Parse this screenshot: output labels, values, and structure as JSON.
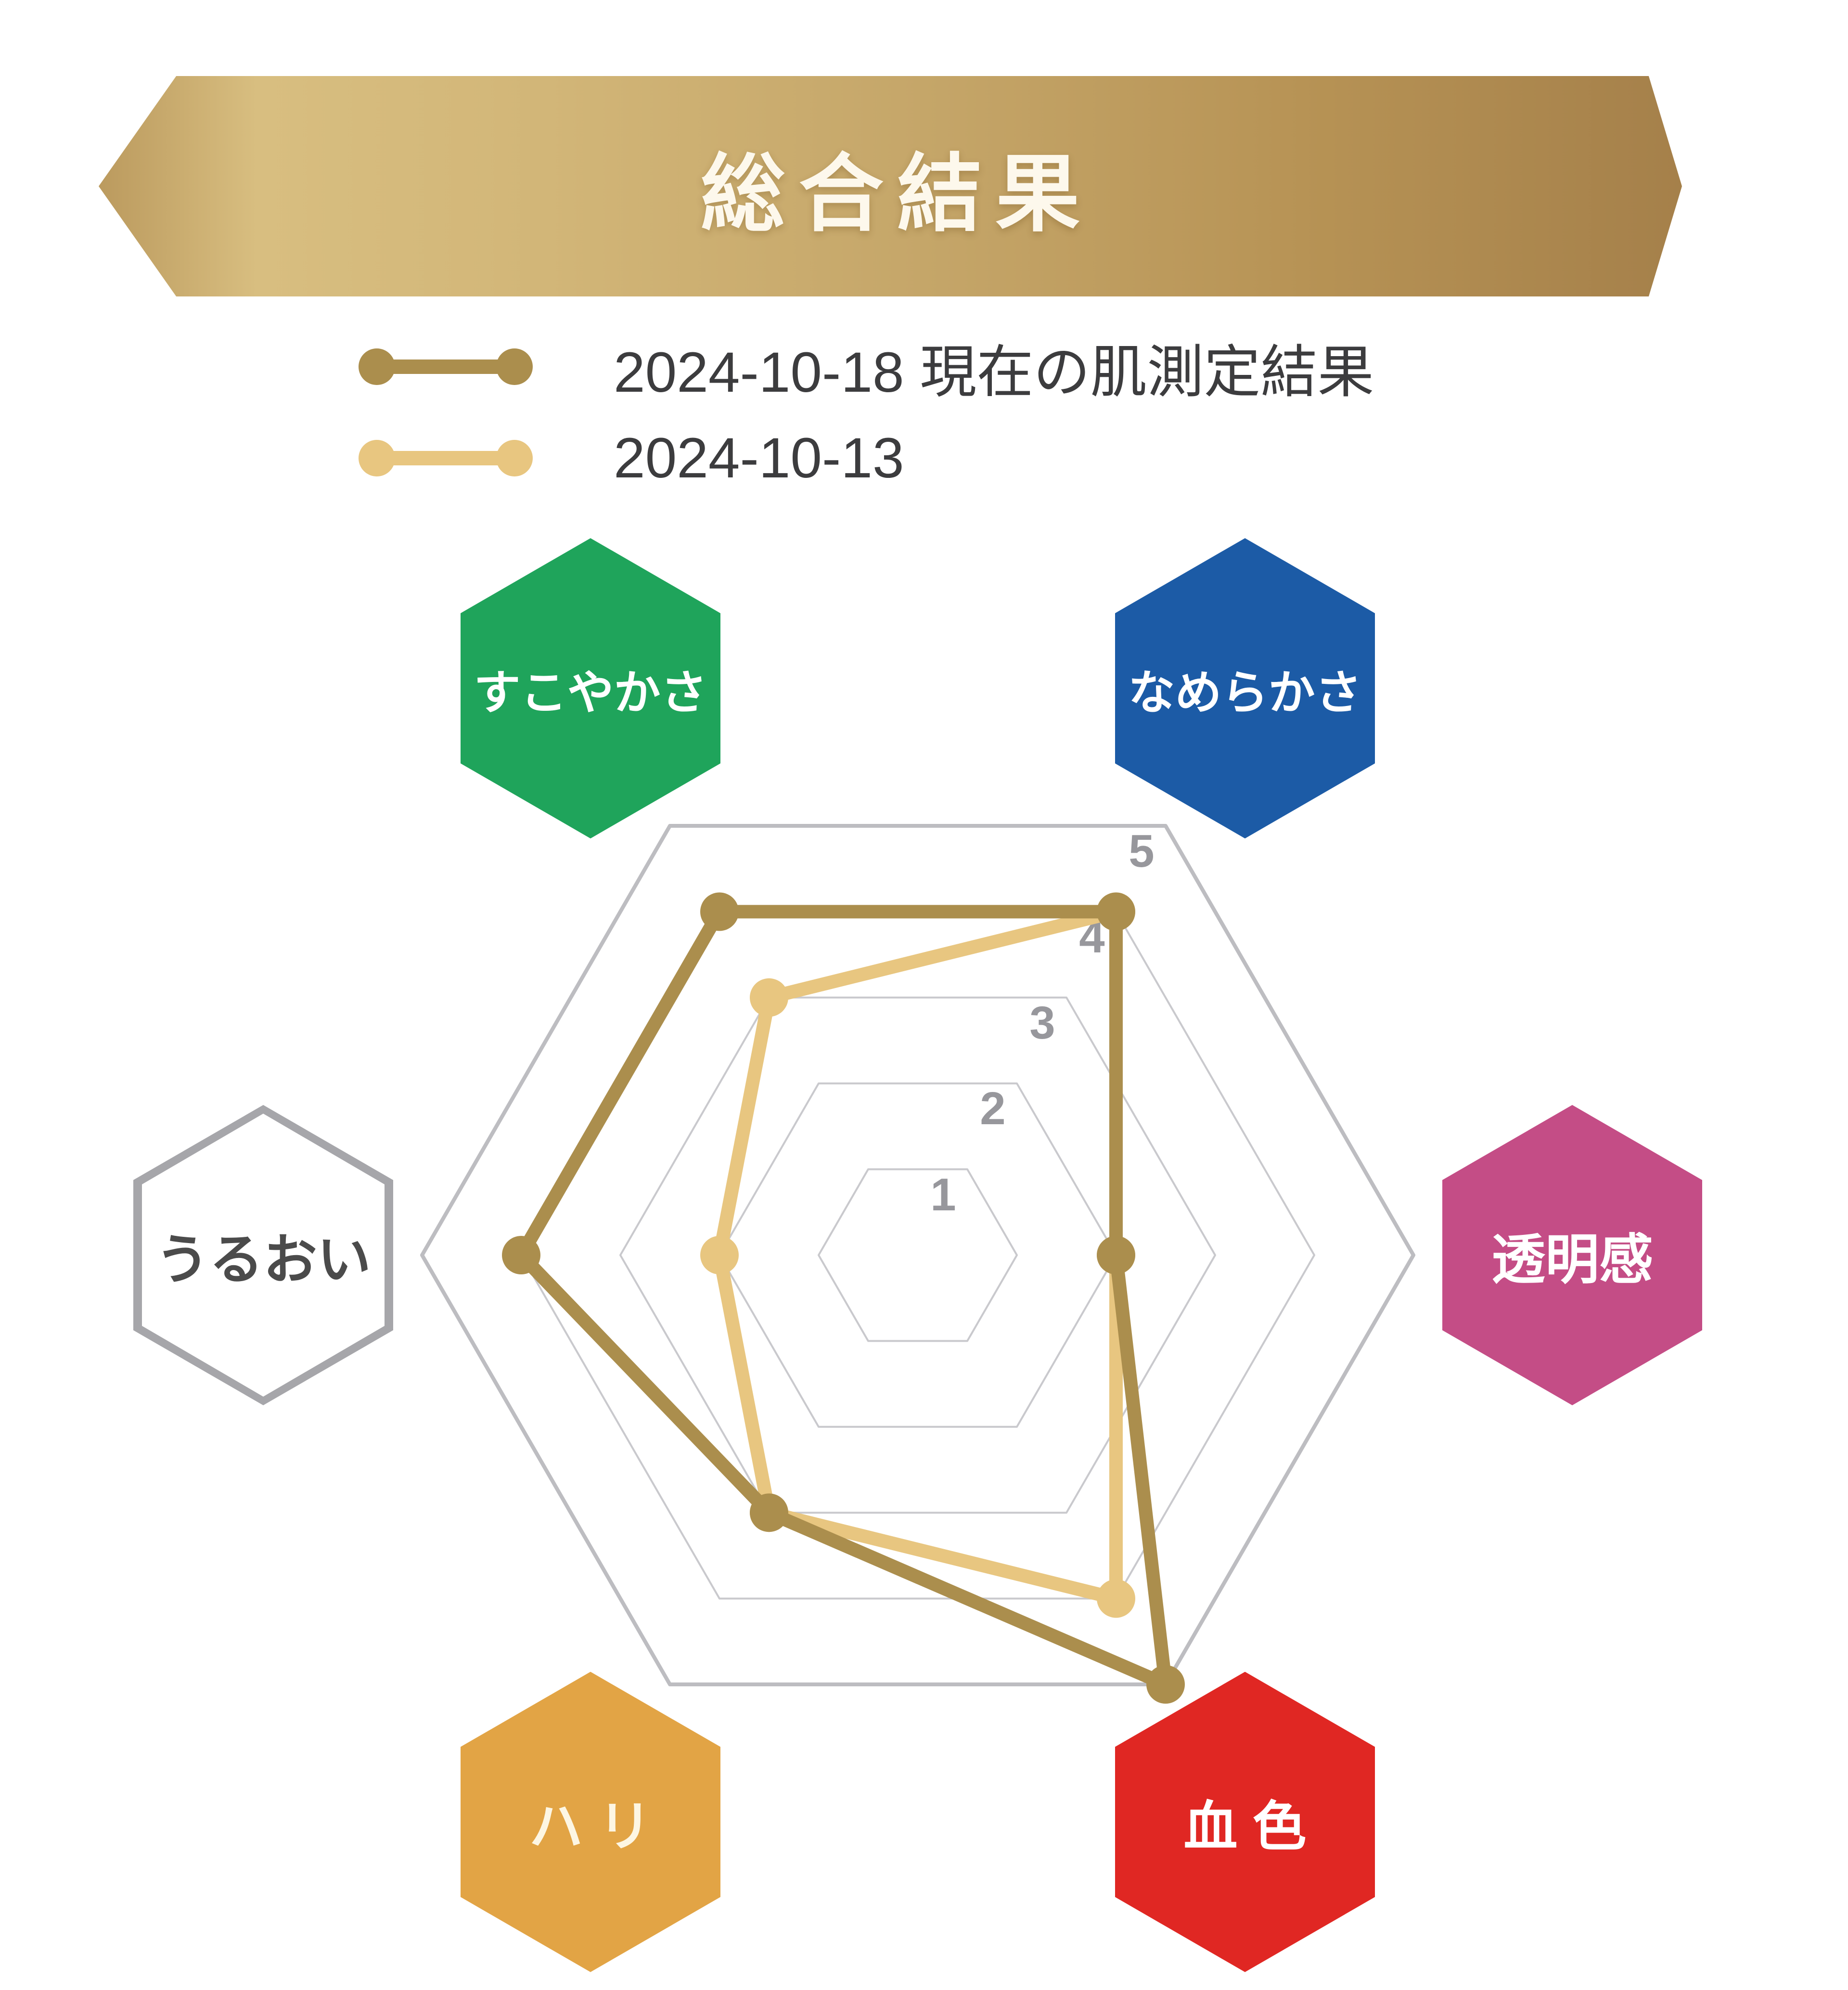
{
  "header": {
    "title": "総合結果"
  },
  "legend": {
    "items": [
      {
        "label": "2024-10-18 現在の肌測定結果",
        "color": "#ab8e4d"
      },
      {
        "label": "2024-10-13",
        "color": "#e8c680"
      }
    ]
  },
  "chart_data": {
    "type": "radar",
    "title": "総合結果",
    "categories": [
      "すこやかさ",
      "なめらかさ",
      "透明感",
      "血色",
      "ハリ",
      "うるおい"
    ],
    "axes": [
      {
        "key": "sukoyakasa",
        "label": "すこやかさ",
        "angle_deg": 120,
        "badge_color": "#1fa45b",
        "text_color": "#ffffff",
        "border_color": null
      },
      {
        "key": "namerakasa",
        "label": "なめらかさ",
        "angle_deg": 60,
        "badge_color": "#1c5ba6",
        "text_color": "#ffffff",
        "border_color": null
      },
      {
        "key": "toumeikan",
        "label": "透明感",
        "angle_deg": 0,
        "badge_color": "#c44d86",
        "text_color": "#ffffff",
        "border_color": null
      },
      {
        "key": "kesshoku",
        "label": "血 色",
        "angle_deg": -60,
        "badge_color": "#e02723",
        "text_color": "#ffffff",
        "border_color": null
      },
      {
        "key": "hari",
        "label": "ハ リ",
        "angle_deg": -120,
        "badge_color": "#e2a445",
        "text_color": "#fdf6e3",
        "border_color": null
      },
      {
        "key": "uruoi",
        "label": "うるおい",
        "angle_deg": 180,
        "badge_color": "#ffffff",
        "text_color": "#4b4b4b",
        "border_color": "#a6a6aa"
      }
    ],
    "series": [
      {
        "name": "2024-10-18 現在の肌測定結果",
        "color": "#ab8e4d",
        "values": [
          4,
          4,
          2,
          5,
          3,
          4
        ]
      },
      {
        "name": "2024-10-13",
        "color": "#e8c680",
        "values": [
          3,
          4,
          2,
          4,
          3,
          2
        ]
      }
    ],
    "scale": {
      "min": 0,
      "max": 5,
      "ticks": [
        1,
        2,
        3,
        4,
        5
      ]
    },
    "grid": {
      "color": "#c9c9cd",
      "outer_color": "#bdbdc1",
      "label_color": "#97979c"
    },
    "legend_position": "top-left"
  }
}
